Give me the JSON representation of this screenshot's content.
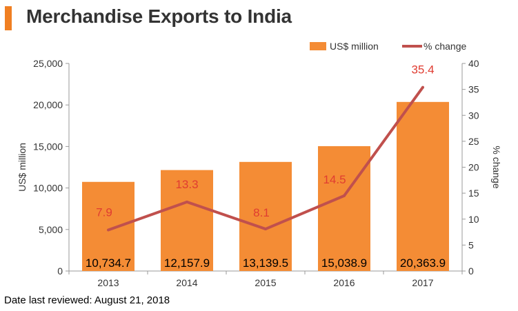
{
  "header": {
    "title": "Merchandise Exports to India",
    "accent_color": "#f07f22"
  },
  "footer": {
    "note": "Date last reviewed: August 21, 2018"
  },
  "chart_data": {
    "type": "bar",
    "title": "Merchandise Exports to India",
    "categories": [
      "2013",
      "2014",
      "2015",
      "2016",
      "2017"
    ],
    "series": [
      {
        "name": "US$ million",
        "type": "bar",
        "axis": "left",
        "color": "#f48c35",
        "values": [
          10734.7,
          12157.9,
          13139.5,
          15038.9,
          20363.9
        ],
        "labels": [
          "10,734.7",
          "12,157.9",
          "13,139.5",
          "15,038.9",
          "20,363.9"
        ]
      },
      {
        "name": "% change",
        "type": "line",
        "axis": "right",
        "color": "#c0504d",
        "values": [
          7.9,
          13.3,
          8.1,
          14.5,
          35.4
        ],
        "labels": [
          "7.9",
          "13.3",
          "8.1",
          "14.5",
          "35.4"
        ]
      }
    ],
    "ylabel": "US$ million",
    "y2label": "% change",
    "ylim": [
      0,
      25000
    ],
    "y2lim": [
      0,
      40
    ],
    "yticks": [
      "0",
      "5,000",
      "10,000",
      "15,000",
      "20,000",
      "25,000"
    ],
    "y2ticks": [
      "0",
      "5",
      "10",
      "15",
      "20",
      "25",
      "30",
      "35",
      "40"
    ],
    "legend_position": "top-right",
    "grid": false,
    "label_color": "#e03c31"
  }
}
